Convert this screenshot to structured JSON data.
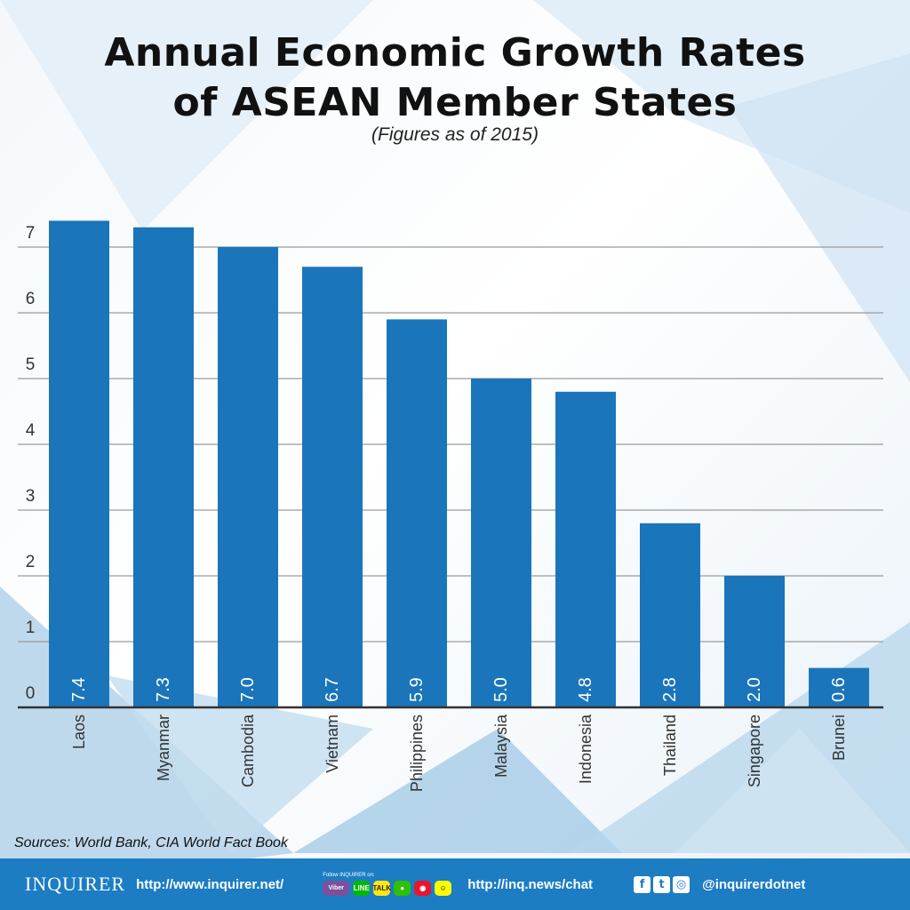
{
  "title_line1": "Annual Economic Growth Rates",
  "title_line2": "of ASEAN Member States",
  "subtitle": "(Figures as of 2015)",
  "sources": "Sources: World Bank, CIA World Fact Book",
  "colors": {
    "bar": "#1a75bb",
    "grid": "#9a9a9a",
    "axis": "#333333",
    "footer": "#1c7dc3"
  },
  "chart_data": {
    "type": "bar",
    "title": "Annual Economic Growth Rates of ASEAN Member States",
    "subtitle": "(Figures as of 2015)",
    "categories": [
      "Laos",
      "Myanmar",
      "Cambodia",
      "Vietnam",
      "Philippines",
      "Malaysia",
      "Indonesia",
      "Thailand",
      "Singapore",
      "Brunei"
    ],
    "values": [
      7.4,
      7.3,
      7.0,
      6.7,
      5.9,
      5.0,
      4.8,
      2.8,
      2.0,
      0.6
    ],
    "value_labels": [
      "7.4",
      "7.3",
      "7.0",
      "6.7",
      "5.9",
      "5.0",
      "4.8",
      "2.8",
      "2.0",
      "0.6"
    ],
    "yticks": [
      0,
      1,
      2,
      3,
      4,
      5,
      6,
      7
    ],
    "ylim": [
      0,
      7.4
    ],
    "xlabel": "",
    "ylabel": "",
    "grid": true
  },
  "footer": {
    "brand": "INQUIRER",
    "url": "http://www.inquirer.net/",
    "follow_label": "Follow INQUIRER on:",
    "apps": [
      {
        "icon": "viber-icon",
        "label": "Viber"
      },
      {
        "icon": "line-icon",
        "label": "LINE"
      },
      {
        "icon": "kakaotalk-icon",
        "label": "TALK"
      },
      {
        "icon": "wechat-icon",
        "label": ""
      },
      {
        "icon": "weibo-icon",
        "label": ""
      },
      {
        "icon": "snapchat-icon",
        "label": ""
      }
    ],
    "chat_url": "http://inq.news/chat",
    "social": [
      {
        "icon": "facebook-icon",
        "glyph": "f"
      },
      {
        "icon": "twitter-icon",
        "glyph": "t"
      },
      {
        "icon": "instagram-icon",
        "glyph": "◎"
      }
    ],
    "handle": "@inquirerdotnet"
  }
}
